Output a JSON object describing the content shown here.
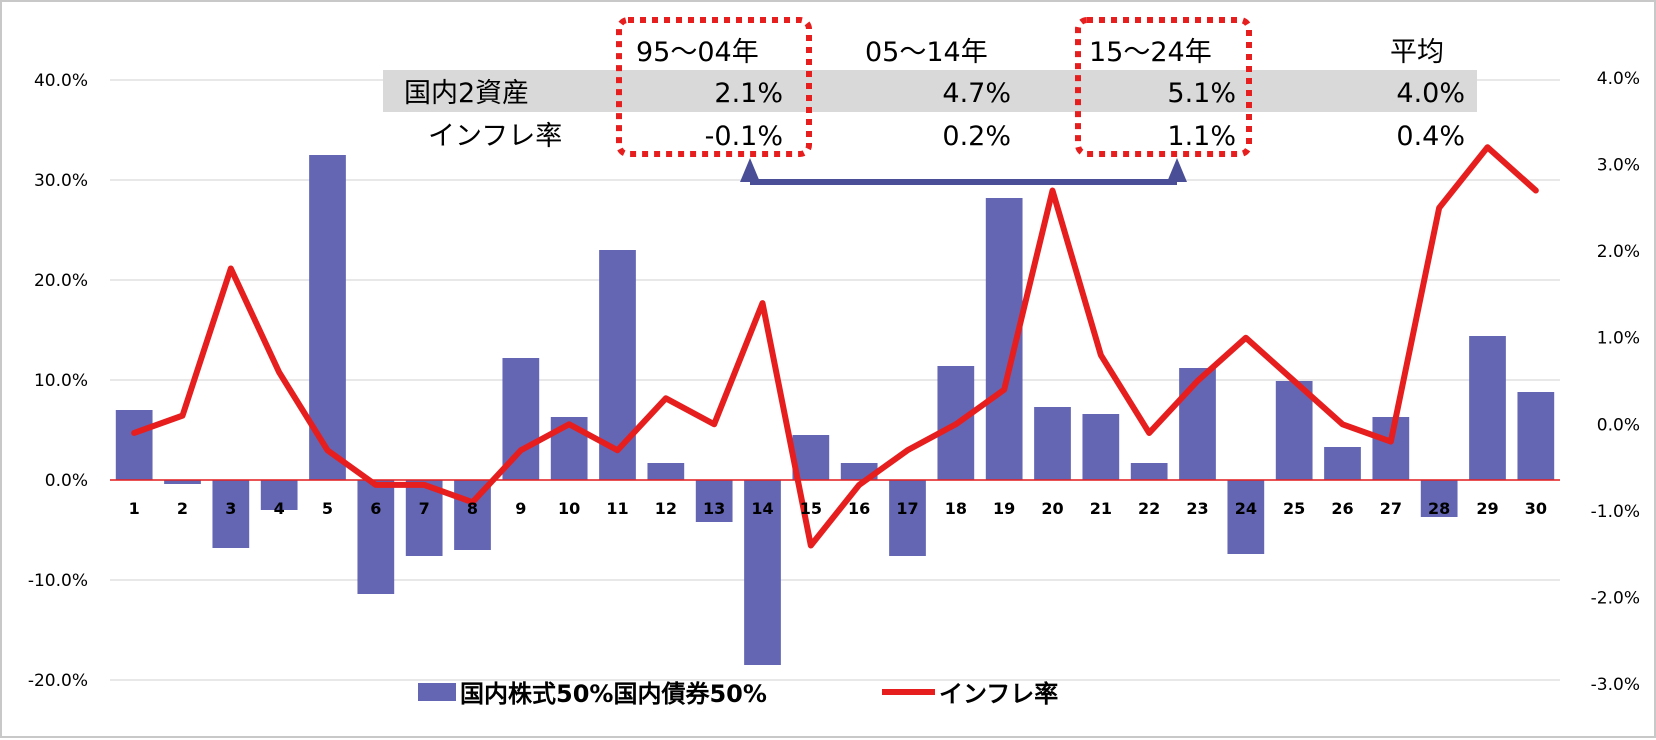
{
  "chart_data": {
    "type": "bar+line",
    "title": "",
    "x": [
      1,
      2,
      3,
      4,
      5,
      6,
      7,
      8,
      9,
      10,
      11,
      12,
      13,
      14,
      15,
      16,
      17,
      18,
      19,
      20,
      21,
      22,
      23,
      24,
      25,
      26,
      27,
      28,
      29,
      30
    ],
    "series": [
      {
        "name": "国内株式50%国内債券50%",
        "type": "bar",
        "axis": "left",
        "values": [
          7.0,
          -0.4,
          -6.8,
          -3.0,
          32.5,
          -11.4,
          -7.6,
          -7.0,
          12.2,
          6.3,
          23.0,
          1.7,
          -4.2,
          -18.5,
          4.5,
          1.7,
          -7.6,
          11.4,
          28.2,
          7.3,
          6.6,
          1.7,
          11.2,
          -7.4,
          9.9,
          3.3,
          6.3,
          -3.7,
          14.4,
          8.8
        ],
        "color": "#6466B4"
      },
      {
        "name": "インフレ率",
        "type": "line",
        "axis": "right",
        "values": [
          -0.1,
          0.1,
          1.8,
          0.6,
          -0.3,
          -0.7,
          -0.7,
          -0.9,
          -0.3,
          0.0,
          -0.3,
          0.3,
          0.0,
          1.4,
          -1.4,
          -0.7,
          -0.3,
          0.0,
          0.4,
          2.7,
          0.8,
          -0.1,
          0.5,
          1.0,
          0.5,
          0.0,
          -0.2,
          2.5,
          3.2,
          2.7
        ],
        "color": "#E61E1E"
      }
    ],
    "y_left": {
      "ticks": [
        "40.0%",
        "30.0%",
        "20.0%",
        "10.0%",
        "0.0%",
        "-10.0%",
        "-20.0%"
      ],
      "range": [
        -20,
        40
      ]
    },
    "y_right": {
      "ticks": [
        "4.0%",
        "3.0%",
        "2.0%",
        "1.0%",
        "0.0%",
        "-1.0%",
        "-2.0%",
        "-3.0%"
      ],
      "range": [
        -3,
        4
      ]
    },
    "legend": {
      "position": "bottom",
      "items": [
        "国内株式50%国内債券50%",
        "インフレ率"
      ]
    },
    "summary_table": {
      "headers": [
        "95～04年",
        "05～14年",
        "15～24年",
        "平均"
      ],
      "rows": [
        {
          "label": "国内2資産",
          "values": [
            "2.1%",
            "4.7%",
            "5.1%",
            "4.0%"
          ],
          "shaded": true
        },
        {
          "label": "インフレ率",
          "values": [
            "-0.1%",
            "0.2%",
            "1.1%",
            "0.4%"
          ],
          "shaded": false
        }
      ],
      "highlighted_columns": [
        "95～04年",
        "15～24年"
      ],
      "highlight_color": "#E61E1E",
      "arrow_color": "#4A4E96"
    },
    "grid": true
  }
}
